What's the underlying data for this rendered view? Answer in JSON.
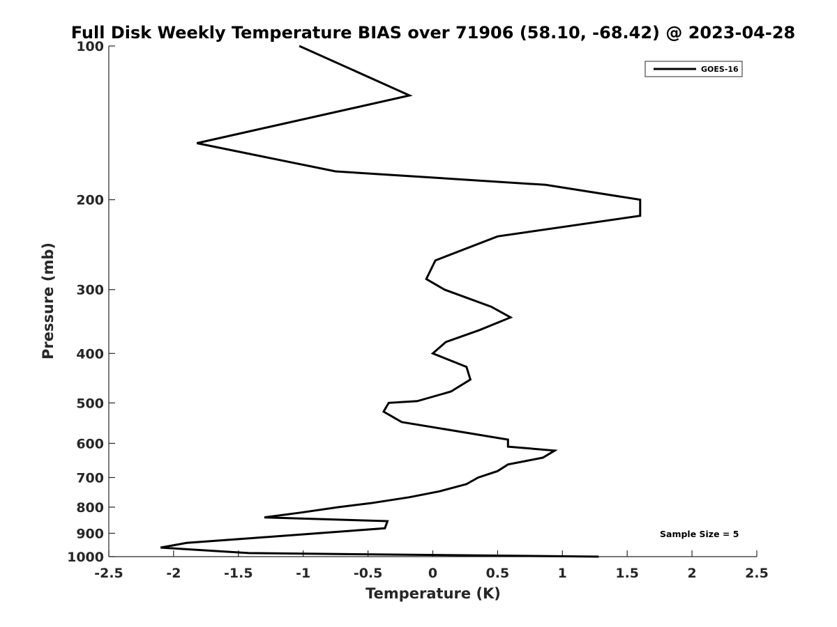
{
  "chart_data": {
    "type": "line",
    "title": "Full Disk Weekly Temperature BIAS over 71906 (58.10, -68.42) @ 2023-04-28",
    "xlabel": "Temperature (K)",
    "ylabel": "Pressure (mb)",
    "xlim": [
      -2.5,
      2.5
    ],
    "ylim": [
      100,
      1000
    ],
    "y_scale": "log",
    "y_reversed": true,
    "grid": false,
    "x_ticks": [
      "-2.5",
      "-2",
      "-1.5",
      "-1",
      "-0.5",
      "0",
      "0.5",
      "1",
      "1.5",
      "2",
      "2.5"
    ],
    "y_ticks": [
      "100",
      "200",
      "300",
      "400",
      "500",
      "600",
      "700",
      "800",
      "900",
      "1000"
    ],
    "legend_position": "top-right",
    "series": [
      {
        "name": "GOES-16",
        "color": "#000000",
        "points": [
          {
            "x": -1.03,
            "p": 100
          },
          {
            "x": -0.18,
            "p": 125
          },
          {
            "x": -1.82,
            "p": 155
          },
          {
            "x": -0.75,
            "p": 176
          },
          {
            "x": 0.87,
            "p": 187
          },
          {
            "x": 1.6,
            "p": 200
          },
          {
            "x": 1.6,
            "p": 215
          },
          {
            "x": 0.5,
            "p": 236
          },
          {
            "x": 0.02,
            "p": 263
          },
          {
            "x": -0.05,
            "p": 286
          },
          {
            "x": 0.09,
            "p": 300
          },
          {
            "x": 0.45,
            "p": 324
          },
          {
            "x": 0.6,
            "p": 340
          },
          {
            "x": 0.36,
            "p": 360
          },
          {
            "x": 0.1,
            "p": 380
          },
          {
            "x": 0.0,
            "p": 400
          },
          {
            "x": 0.26,
            "p": 425
          },
          {
            "x": 0.29,
            "p": 450
          },
          {
            "x": 0.14,
            "p": 475
          },
          {
            "x": -0.12,
            "p": 496
          },
          {
            "x": -0.34,
            "p": 500
          },
          {
            "x": -0.38,
            "p": 520
          },
          {
            "x": -0.24,
            "p": 545
          },
          {
            "x": 0.58,
            "p": 590
          },
          {
            "x": 0.58,
            "p": 609
          },
          {
            "x": 0.94,
            "p": 620
          },
          {
            "x": 0.85,
            "p": 640
          },
          {
            "x": 0.58,
            "p": 660
          },
          {
            "x": 0.5,
            "p": 680
          },
          {
            "x": 0.35,
            "p": 700
          },
          {
            "x": 0.26,
            "p": 721
          },
          {
            "x": 0.05,
            "p": 745
          },
          {
            "x": -0.18,
            "p": 765
          },
          {
            "x": -0.48,
            "p": 786
          },
          {
            "x": -0.73,
            "p": 800
          },
          {
            "x": -1.02,
            "p": 820
          },
          {
            "x": -1.3,
            "p": 838
          },
          {
            "x": -0.35,
            "p": 852
          },
          {
            "x": -0.37,
            "p": 880
          },
          {
            "x": -1.4,
            "p": 920
          },
          {
            "x": -1.9,
            "p": 940
          },
          {
            "x": -2.1,
            "p": 960
          },
          {
            "x": -1.42,
            "p": 984
          },
          {
            "x": 1.28,
            "p": 1000
          }
        ]
      }
    ],
    "annotations": [
      "Sample Size = 5"
    ]
  }
}
